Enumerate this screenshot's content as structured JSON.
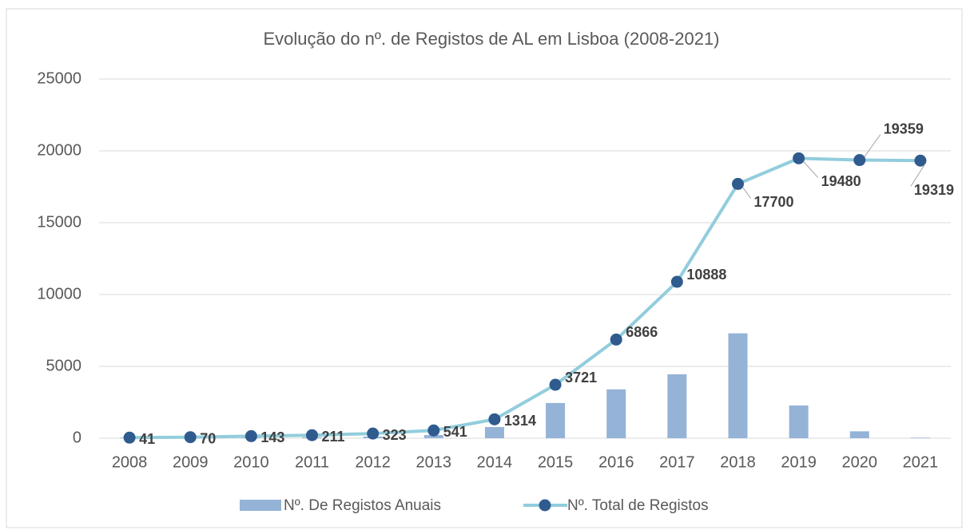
{
  "chart_data": {
    "type": "bar-line",
    "title": "Evolução do nº. de Registos de AL em Lisboa (2008-2021)",
    "categories": [
      "2008",
      "2009",
      "2010",
      "2011",
      "2012",
      "2013",
      "2014",
      "2015",
      "2016",
      "2017",
      "2018",
      "2019",
      "2020",
      "2021"
    ],
    "series": [
      {
        "name": "Nº. De Registos Anuais",
        "type": "bar",
        "color": "#95b3d7",
        "values": [
          41,
          29,
          73,
          68,
          112,
          218,
          780,
          2450,
          3400,
          4450,
          7300,
          2280,
          480,
          40
        ]
      },
      {
        "name": "Nº. Total de Registos",
        "type": "line",
        "color": "#92cddc",
        "marker_color": "#2f5b8e",
        "values": [
          41,
          70,
          143,
          211,
          323,
          541,
          1314,
          3721,
          6866,
          10888,
          17700,
          19480,
          19359,
          19319
        ]
      }
    ],
    "ylim": [
      0,
      25000
    ],
    "yticks": [
      0,
      5000,
      10000,
      15000,
      20000,
      25000
    ],
    "grid": true,
    "legend": "bottom"
  }
}
